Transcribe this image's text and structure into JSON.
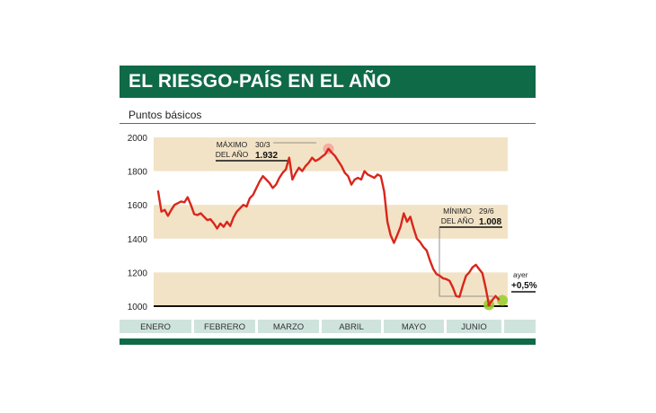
{
  "header": {
    "title": "EL RIESGO-PAÍS EN EL AÑO",
    "subtitle": "Puntos básicos"
  },
  "colors": {
    "brand_green": "#0f6a47",
    "band_beige": "#f2e3c6",
    "line_red": "#d9261c",
    "month_bar": "#cfe3dd",
    "max_marker": "#f5a59c",
    "last_marker": "#9acd32"
  },
  "annotations": {
    "max_label_1": "MÁXIMO",
    "max_label_2": "DEL AÑO",
    "max_date": "30/3",
    "max_value": "1.932",
    "min_label_1": "MÍNIMO",
    "min_label_2": "DEL AÑO",
    "min_date": "29/6",
    "min_value": "1.008",
    "last_label": "ayer",
    "last_value": "+0,5%"
  },
  "chart_data": {
    "type": "line",
    "title": "EL RIESGO-PAÍS EN EL AÑO",
    "ylabel": "Puntos básicos",
    "ylim": [
      1000,
      2000
    ],
    "yticks": [
      "2000",
      "1800",
      "1600",
      "1400",
      "1200",
      "1000"
    ],
    "months": [
      "ENERO",
      "FEBRERO",
      "MARZO",
      "ABRIL",
      "MAYO",
      "JUNIO"
    ],
    "series": [
      {
        "values": [
          1680,
          1560,
          1570,
          1535,
          1570,
          1600,
          1610,
          1620,
          1615,
          1645,
          1600,
          1545,
          1540,
          1550,
          1530,
          1510,
          1515,
          1490,
          1460,
          1490,
          1470,
          1500,
          1475,
          1525,
          1560,
          1580,
          1600,
          1590,
          1640,
          1660,
          1700,
          1740,
          1770,
          1750,
          1730,
          1700,
          1720,
          1760,
          1790,
          1810,
          1880,
          1750,
          1790,
          1820,
          1800,
          1830,
          1850,
          1880,
          1860,
          1870,
          1885,
          1900,
          1932,
          1910,
          1890,
          1860,
          1830,
          1790,
          1770,
          1720,
          1750,
          1760,
          1750,
          1800,
          1780,
          1770,
          1760,
          1780,
          1770,
          1680,
          1500,
          1420,
          1375,
          1420,
          1470,
          1550,
          1500,
          1530,
          1460,
          1400,
          1380,
          1350,
          1330,
          1270,
          1220,
          1190,
          1180,
          1165,
          1160,
          1150,
          1110,
          1060,
          1055,
          1120,
          1180,
          1200,
          1230,
          1245,
          1220,
          1195,
          1110,
          1008,
          1035,
          1060,
          1040
        ]
      }
    ]
  }
}
